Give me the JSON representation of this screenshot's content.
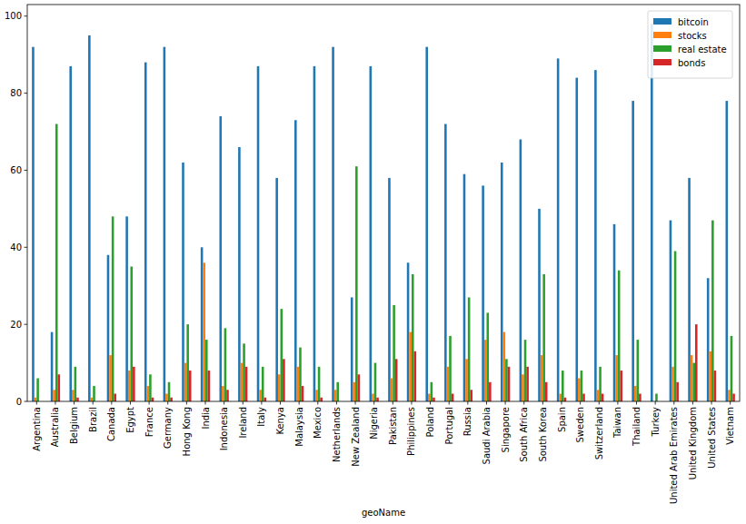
{
  "chart_data": {
    "type": "bar",
    "x_label": "geoName",
    "categories": [
      "Argentina",
      "Australia",
      "Belgium",
      "Brazil",
      "Canada",
      "Egypt",
      "France",
      "Germany",
      "Hong Kong",
      "India",
      "Indonesia",
      "Ireland",
      "Italy",
      "Kenya",
      "Malaysia",
      "Mexico",
      "Netherlands",
      "New Zealand",
      "Nigeria",
      "Pakistan",
      "Philippines",
      "Poland",
      "Portugal",
      "Russia",
      "Saudi Arabia",
      "Singapore",
      "South Africa",
      "South Korea",
      "Spain",
      "Sweden",
      "Switzerland",
      "Taiwan",
      "Thailand",
      "Turkey",
      "United Arab Emirates",
      "United Kingdom",
      "United States",
      "Vietnam"
    ],
    "series": [
      {
        "name": "bitcoin",
        "color": "#1f77b4",
        "values": [
          92,
          18,
          87,
          95,
          38,
          48,
          88,
          92,
          62,
          40,
          74,
          66,
          87,
          58,
          73,
          87,
          92,
          27,
          87,
          58,
          36,
          92,
          72,
          59,
          56,
          62,
          68,
          50,
          89,
          84,
          86,
          46,
          78,
          98,
          47,
          58,
          32,
          78
        ]
      },
      {
        "name": "stocks",
        "color": "#ff7f0e",
        "values": [
          1,
          3,
          3,
          1,
          12,
          8,
          4,
          2,
          10,
          36,
          4,
          10,
          3,
          7,
          9,
          3,
          3,
          5,
          2,
          6,
          18,
          2,
          9,
          11,
          16,
          18,
          7,
          12,
          2,
          6,
          3,
          12,
          4,
          0,
          9,
          12,
          13,
          3
        ]
      },
      {
        "name": "real estate",
        "color": "#2ca02c",
        "values": [
          6,
          72,
          9,
          4,
          48,
          35,
          7,
          5,
          20,
          16,
          19,
          15,
          9,
          24,
          14,
          9,
          5,
          61,
          10,
          25,
          33,
          5,
          17,
          27,
          23,
          11,
          16,
          33,
          8,
          8,
          9,
          34,
          16,
          2,
          39,
          10,
          47,
          17
        ]
      },
      {
        "name": "bonds",
        "color": "#d62728",
        "values": [
          0,
          7,
          1,
          0,
          2,
          9,
          1,
          1,
          8,
          8,
          3,
          9,
          1,
          11,
          4,
          1,
          0,
          7,
          1,
          11,
          13,
          1,
          2,
          3,
          5,
          9,
          9,
          5,
          1,
          2,
          2,
          8,
          2,
          0,
          5,
          20,
          8,
          2
        ]
      }
    ],
    "ylim": [
      0,
      103
    ],
    "yticks": [
      0,
      20,
      40,
      60,
      80,
      100
    ],
    "grid": false,
    "legend": "upper right"
  }
}
